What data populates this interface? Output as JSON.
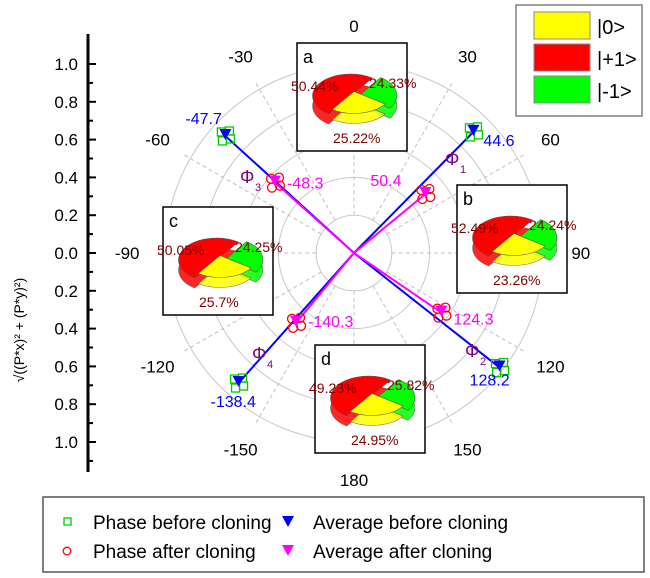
{
  "chart_data": {
    "type": "polar-scatter",
    "ylabel": "√((P*x)² + (P*y)²)",
    "radial_ticks": [
      "1.0",
      "0.8",
      "0.6",
      "0.4",
      "0.2",
      "0.0",
      "0.2",
      "0.4",
      "0.6",
      "0.8",
      "1.0"
    ],
    "radial_range": [
      0,
      1.0
    ],
    "angle_ticks": [
      "0",
      "30",
      "60",
      "90",
      "120",
      "150",
      "180",
      "-150",
      "-120",
      "-90",
      "-60",
      "-30"
    ],
    "angle_values": [
      0,
      30,
      60,
      90,
      120,
      150,
      180,
      -150,
      -120,
      -90,
      -60,
      -30
    ],
    "grid": true,
    "groups": [
      {
        "phi": "Φ",
        "sub": "1",
        "before": {
          "angle": 44.6,
          "r": 0.9,
          "label": "44.6"
        },
        "after": {
          "angle": 50.4,
          "r": 0.49,
          "label": "50.4"
        }
      },
      {
        "phi": "Φ",
        "sub": "2",
        "before": {
          "angle": 128.2,
          "r": 0.98,
          "label": "128.2"
        },
        "after": {
          "angle": 124.3,
          "r": 0.56,
          "label": "124.3"
        }
      },
      {
        "phi": "Φ",
        "sub": "3",
        "before": {
          "angle": -47.7,
          "r": 0.92,
          "label": "-47.7"
        },
        "after": {
          "angle": -48.3,
          "r": 0.56,
          "label": "-48.3"
        }
      },
      {
        "phi": "Φ",
        "sub": "4",
        "before": {
          "angle": -138.4,
          "r": 0.92,
          "label": "-138.4"
        },
        "after": {
          "angle": -140.3,
          "r": 0.48,
          "label": "-140.3"
        }
      }
    ],
    "pies": [
      {
        "label": "a",
        "zero": "25.22%",
        "plus": "50.44%",
        "minus": "24.33%"
      },
      {
        "label": "b",
        "zero": "23.26%",
        "plus": "52.49%",
        "minus": "24.24%"
      },
      {
        "label": "c",
        "zero": "25.7%",
        "plus": "50.05%",
        "minus": "24.25%"
      },
      {
        "label": "d",
        "zero": "24.95%",
        "plus": "49.23%",
        "minus": "25.82%"
      }
    ],
    "pie_legend": [
      {
        "label": "|0>",
        "color": "#ffff00"
      },
      {
        "label": "|+1>",
        "color": "#ff0000"
      },
      {
        "label": "|-1>",
        "color": "#00ff00"
      }
    ],
    "legend": [
      {
        "label": "Phase before cloning",
        "marker": "square",
        "color": "#00cc00"
      },
      {
        "label": "Phase  after cloning",
        "marker": "circle",
        "color": "#ff0000"
      },
      {
        "label": "Average before cloning",
        "marker": "triangle-down",
        "color": "#0000ff"
      },
      {
        "label": "Average  after cloning",
        "marker": "triangle-down",
        "color": "#ff00ff"
      }
    ],
    "colors": {
      "before": "#0000ff",
      "after": "#ff00ff",
      "pie_text": "#800000",
      "phi": "#800080"
    }
  }
}
